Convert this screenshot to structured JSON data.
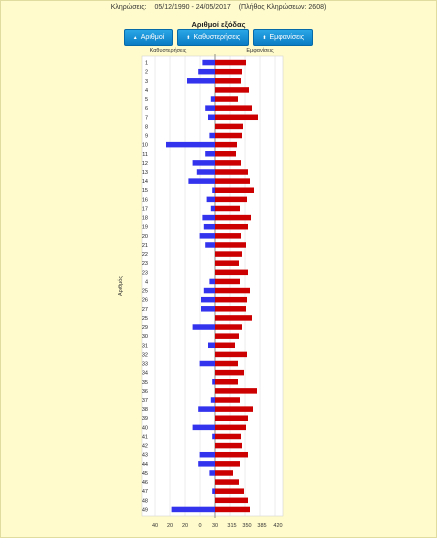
{
  "header": {
    "label": "Κληρώσεις:",
    "range": "05/12/1990 - 24/05/2017",
    "count": "(Πλήθος Κληρώσεων: 2608)"
  },
  "buttons": [
    {
      "label": "Αριθμοί",
      "icon": "triangle-up-icon"
    },
    {
      "label": "Καθυστερήσεις",
      "icon": "sort-arrows-icon"
    },
    {
      "label": "Εμφανίσεις",
      "icon": "sort-arrows-icon"
    }
  ],
  "colors": {
    "delay": "#3333ee",
    "appear": "#cc0000",
    "button": "#1a90d6",
    "background": "#fffbcc"
  },
  "chart_data": {
    "type": "bar",
    "title": "Αριθμοί εξόδας",
    "left_series_label": "Καθυστερήσεις",
    "right_series_label": "Εμφανίσεις",
    "ylabel": "Αριθμός",
    "categories": [
      "1",
      "2",
      "3",
      "4",
      "5",
      "6",
      "7",
      "8",
      "9",
      "10",
      "11",
      "12",
      "13",
      "14",
      "15",
      "16",
      "17",
      "18",
      "19",
      "20",
      "21",
      "22",
      "23",
      "23",
      "4",
      "25",
      "26",
      "27",
      "25",
      "29",
      "30",
      "31",
      "32",
      "33",
      "34",
      "35",
      "36",
      "37",
      "38",
      "39",
      "40",
      "41",
      "42",
      "43",
      "44",
      "45",
      "46",
      "47",
      "48",
      "49"
    ],
    "x_tick_labels": [
      "40",
      "20",
      "20",
      "0",
      "30",
      "315",
      "350",
      "385",
      "420"
    ],
    "series": [
      {
        "name": "Καθυστερήσεις",
        "values": [
          9,
          12,
          20,
          0,
          3,
          7,
          5,
          0,
          4,
          35,
          7,
          16,
          13,
          19,
          2,
          6,
          3,
          9,
          8,
          11,
          7,
          0,
          0,
          0,
          4,
          8,
          10,
          10,
          0,
          16,
          0,
          5,
          0,
          11,
          0,
          2,
          0,
          3,
          12,
          0,
          16,
          2,
          0,
          11,
          12,
          4,
          0,
          2,
          0,
          31
        ]
      },
      {
        "name": "Εμφανίσεις",
        "values": [
          311,
          307,
          306,
          314,
          303,
          317,
          323,
          308,
          307,
          302,
          301,
          306,
          313,
          315,
          319,
          312,
          305,
          316,
          313,
          306,
          311,
          307,
          304,
          313,
          305,
          315,
          312,
          311,
          317,
          307,
          304,
          300,
          312,
          303,
          309,
          303,
          322,
          305,
          318,
          313,
          311,
          306,
          307,
          313,
          305,
          298,
          304,
          309,
          313,
          315
        ]
      }
    ],
    "right_axis_zero": 280,
    "grid": true
  }
}
